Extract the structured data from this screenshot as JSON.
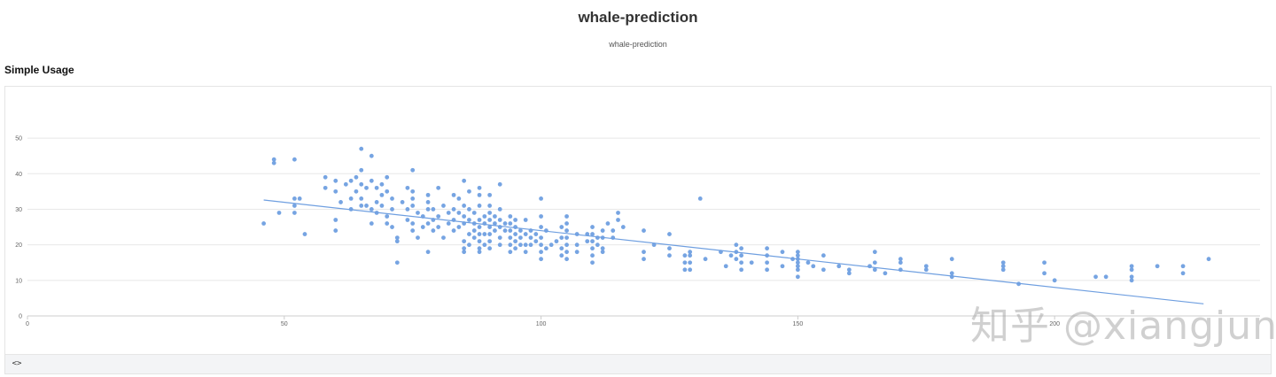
{
  "header": {
    "title": "whale-prediction",
    "subtitle": "whale-prediction"
  },
  "section": {
    "title": "Simple Usage"
  },
  "footer": {
    "code_toggle_label": "<>"
  },
  "watermark": {
    "text": "知乎 @xiangjun"
  },
  "colors": {
    "points": "#6f9fe0",
    "line": "#6f9fe0",
    "grid": "#e8e8e8",
    "axis": "#cccccc"
  },
  "chart_data": {
    "type": "scatter",
    "title": "",
    "xlabel": "",
    "ylabel": "",
    "xlim": [
      0,
      240
    ],
    "ylim": [
      0,
      55
    ],
    "x_ticks": [
      0,
      50,
      100,
      150,
      200
    ],
    "y_ticks": [
      0,
      10,
      20,
      30,
      40,
      50
    ],
    "grid": true,
    "points": [
      [
        46,
        26
      ],
      [
        48,
        44
      ],
      [
        48,
        43
      ],
      [
        49,
        29
      ],
      [
        52,
        44
      ],
      [
        52,
        33
      ],
      [
        52,
        31
      ],
      [
        52,
        29
      ],
      [
        53,
        33
      ],
      [
        54,
        23
      ],
      [
        58,
        39
      ],
      [
        58,
        36
      ],
      [
        60,
        38
      ],
      [
        60,
        35
      ],
      [
        60,
        27
      ],
      [
        60,
        24
      ],
      [
        61,
        32
      ],
      [
        62,
        37
      ],
      [
        63,
        38
      ],
      [
        63,
        33
      ],
      [
        63,
        30
      ],
      [
        64,
        39
      ],
      [
        64,
        35
      ],
      [
        65,
        47
      ],
      [
        65,
        41
      ],
      [
        65,
        37
      ],
      [
        65,
        33
      ],
      [
        65,
        31
      ],
      [
        66,
        36
      ],
      [
        66,
        31
      ],
      [
        67,
        45
      ],
      [
        67,
        38
      ],
      [
        67,
        30
      ],
      [
        67,
        26
      ],
      [
        68,
        36
      ],
      [
        68,
        32
      ],
      [
        68,
        29
      ],
      [
        69,
        37
      ],
      [
        69,
        34
      ],
      [
        69,
        31
      ],
      [
        70,
        39
      ],
      [
        70,
        35
      ],
      [
        70,
        28
      ],
      [
        70,
        26
      ],
      [
        71,
        33
      ],
      [
        71,
        30
      ],
      [
        71,
        25
      ],
      [
        72,
        22
      ],
      [
        72,
        21
      ],
      [
        72,
        15
      ],
      [
        73,
        32
      ],
      [
        74,
        36
      ],
      [
        74,
        30
      ],
      [
        74,
        27
      ],
      [
        75,
        41
      ],
      [
        75,
        35
      ],
      [
        75,
        33
      ],
      [
        75,
        31
      ],
      [
        75,
        26
      ],
      [
        75,
        24
      ],
      [
        76,
        29
      ],
      [
        76,
        22
      ],
      [
        77,
        28
      ],
      [
        77,
        25
      ],
      [
        78,
        34
      ],
      [
        78,
        32
      ],
      [
        78,
        30
      ],
      [
        78,
        26
      ],
      [
        78,
        18
      ],
      [
        79,
        30
      ],
      [
        79,
        27
      ],
      [
        79,
        24
      ],
      [
        80,
        36
      ],
      [
        80,
        28
      ],
      [
        80,
        25
      ],
      [
        81,
        31
      ],
      [
        81,
        22
      ],
      [
        82,
        29
      ],
      [
        82,
        26
      ],
      [
        83,
        34
      ],
      [
        83,
        30
      ],
      [
        83,
        27
      ],
      [
        83,
        24
      ],
      [
        84,
        33
      ],
      [
        84,
        29
      ],
      [
        84,
        25
      ],
      [
        85,
        38
      ],
      [
        85,
        31
      ],
      [
        85,
        28
      ],
      [
        85,
        26
      ],
      [
        85,
        21
      ],
      [
        85,
        19
      ],
      [
        85,
        18
      ],
      [
        86,
        35
      ],
      [
        86,
        30
      ],
      [
        86,
        27
      ],
      [
        86,
        23
      ],
      [
        86,
        20
      ],
      [
        87,
        29
      ],
      [
        87,
        26
      ],
      [
        87,
        24
      ],
      [
        87,
        22
      ],
      [
        88,
        36
      ],
      [
        88,
        34
      ],
      [
        88,
        31
      ],
      [
        88,
        27
      ],
      [
        88,
        25
      ],
      [
        88,
        23
      ],
      [
        88,
        21
      ],
      [
        88,
        19
      ],
      [
        88,
        18
      ],
      [
        89,
        28
      ],
      [
        89,
        26
      ],
      [
        89,
        23
      ],
      [
        89,
        20
      ],
      [
        90,
        34
      ],
      [
        90,
        31
      ],
      [
        90,
        29
      ],
      [
        90,
        27
      ],
      [
        90,
        25
      ],
      [
        90,
        23
      ],
      [
        90,
        21
      ],
      [
        90,
        19
      ],
      [
        91,
        28
      ],
      [
        91,
        26
      ],
      [
        91,
        24
      ],
      [
        92,
        37
      ],
      [
        92,
        30
      ],
      [
        92,
        27
      ],
      [
        92,
        25
      ],
      [
        92,
        22
      ],
      [
        92,
        20
      ],
      [
        93,
        26
      ],
      [
        93,
        24
      ],
      [
        94,
        28
      ],
      [
        94,
        26
      ],
      [
        94,
        24
      ],
      [
        94,
        22
      ],
      [
        94,
        20
      ],
      [
        94,
        18
      ],
      [
        95,
        27
      ],
      [
        95,
        25
      ],
      [
        95,
        23
      ],
      [
        95,
        21
      ],
      [
        95,
        19
      ],
      [
        96,
        24
      ],
      [
        96,
        22
      ],
      [
        96,
        20
      ],
      [
        97,
        27
      ],
      [
        97,
        23
      ],
      [
        97,
        20
      ],
      [
        97,
        18
      ],
      [
        98,
        24
      ],
      [
        98,
        22
      ],
      [
        98,
        20
      ],
      [
        99,
        23
      ],
      [
        99,
        21
      ],
      [
        100,
        33
      ],
      [
        100,
        28
      ],
      [
        100,
        25
      ],
      [
        100,
        22
      ],
      [
        100,
        20
      ],
      [
        100,
        18
      ],
      [
        100,
        16
      ],
      [
        101,
        24
      ],
      [
        101,
        19
      ],
      [
        102,
        20
      ],
      [
        103,
        21
      ],
      [
        104,
        25
      ],
      [
        104,
        22
      ],
      [
        104,
        19
      ],
      [
        104,
        17
      ],
      [
        105,
        28
      ],
      [
        105,
        26
      ],
      [
        105,
        24
      ],
      [
        105,
        22
      ],
      [
        105,
        20
      ],
      [
        105,
        18
      ],
      [
        105,
        16
      ],
      [
        107,
        23
      ],
      [
        107,
        20
      ],
      [
        107,
        18
      ],
      [
        109,
        23
      ],
      [
        109,
        21
      ],
      [
        110,
        25
      ],
      [
        110,
        23
      ],
      [
        110,
        21
      ],
      [
        110,
        19
      ],
      [
        110,
        17
      ],
      [
        110,
        15
      ],
      [
        111,
        22
      ],
      [
        111,
        20
      ],
      [
        112,
        24
      ],
      [
        112,
        22
      ],
      [
        112,
        19
      ],
      [
        112,
        18
      ],
      [
        113,
        26
      ],
      [
        114,
        24
      ],
      [
        114,
        22
      ],
      [
        115,
        29
      ],
      [
        115,
        27
      ],
      [
        116,
        25
      ],
      [
        120,
        24
      ],
      [
        120,
        18
      ],
      [
        120,
        16
      ],
      [
        122,
        20
      ],
      [
        125,
        23
      ],
      [
        125,
        19
      ],
      [
        125,
        17
      ],
      [
        128,
        17
      ],
      [
        128,
        15
      ],
      [
        128,
        13
      ],
      [
        129,
        18
      ],
      [
        129,
        17
      ],
      [
        129,
        15
      ],
      [
        129,
        13
      ],
      [
        131,
        33
      ],
      [
        132,
        16
      ],
      [
        135,
        18
      ],
      [
        136,
        14
      ],
      [
        137,
        17
      ],
      [
        138,
        20
      ],
      [
        138,
        18
      ],
      [
        138,
        16
      ],
      [
        139,
        19
      ],
      [
        139,
        17
      ],
      [
        139,
        15
      ],
      [
        139,
        13
      ],
      [
        141,
        15
      ],
      [
        144,
        19
      ],
      [
        144,
        17
      ],
      [
        144,
        15
      ],
      [
        144,
        13
      ],
      [
        147,
        18
      ],
      [
        147,
        14
      ],
      [
        149,
        16
      ],
      [
        150,
        18
      ],
      [
        150,
        17
      ],
      [
        150,
        16
      ],
      [
        150,
        15
      ],
      [
        150,
        14
      ],
      [
        150,
        13
      ],
      [
        150,
        11
      ],
      [
        152,
        15
      ],
      [
        153,
        14
      ],
      [
        155,
        17
      ],
      [
        155,
        13
      ],
      [
        158,
        14
      ],
      [
        160,
        13
      ],
      [
        160,
        12
      ],
      [
        164,
        14
      ],
      [
        165,
        18
      ],
      [
        165,
        15
      ],
      [
        165,
        13
      ],
      [
        167,
        12
      ],
      [
        170,
        16
      ],
      [
        170,
        15
      ],
      [
        170,
        13
      ],
      [
        175,
        14
      ],
      [
        175,
        13
      ],
      [
        180,
        16
      ],
      [
        180,
        12
      ],
      [
        180,
        11
      ],
      [
        190,
        15
      ],
      [
        190,
        14
      ],
      [
        190,
        13
      ],
      [
        193,
        9
      ],
      [
        198,
        15
      ],
      [
        198,
        12
      ],
      [
        200,
        10
      ],
      [
        208,
        11
      ],
      [
        210,
        11
      ],
      [
        215,
        14
      ],
      [
        215,
        13
      ],
      [
        215,
        11
      ],
      [
        215,
        10
      ],
      [
        220,
        14
      ],
      [
        225,
        14
      ],
      [
        225,
        12
      ],
      [
        230,
        16
      ]
    ],
    "regression_line": {
      "x": [
        46,
        229
      ],
      "y": [
        32.6,
        3.4
      ]
    }
  }
}
